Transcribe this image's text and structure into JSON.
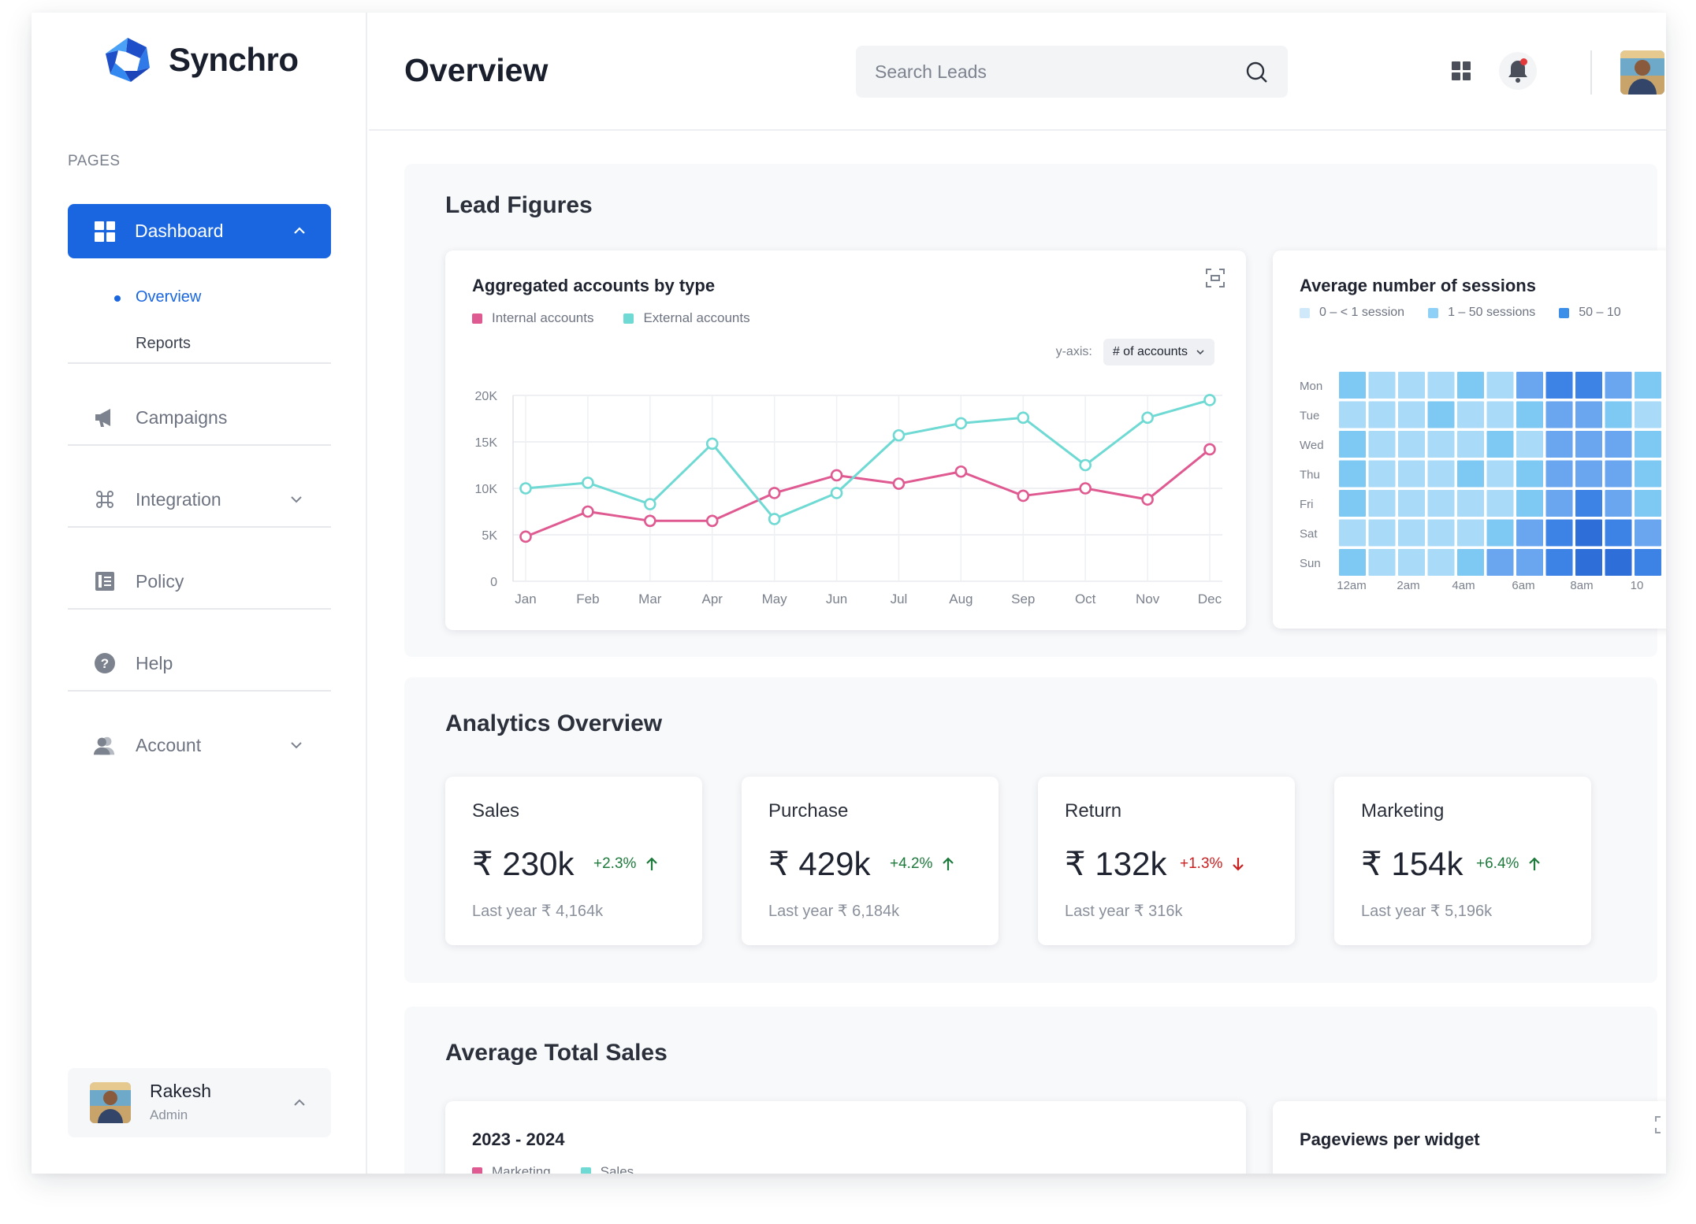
{
  "app": {
    "name": "Synchro"
  },
  "sidebar": {
    "section_label": "PAGES",
    "dashboard": {
      "label": "Dashboard",
      "icon": "dashboard-icon"
    },
    "subitems": [
      {
        "label": "Overview",
        "active": true
      },
      {
        "label": "Reports",
        "active": false
      }
    ],
    "items": [
      {
        "label": "Campaigns",
        "icon": "megaphone-icon"
      },
      {
        "label": "Integration",
        "icon": "command-icon",
        "has_chevron": true
      },
      {
        "label": "Policy",
        "icon": "document-icon"
      },
      {
        "label": "Help",
        "icon": "help-icon"
      },
      {
        "label": "Account",
        "icon": "users-icon",
        "has_chevron": true
      }
    ],
    "user": {
      "name": "Rakesh",
      "role": "Admin"
    }
  },
  "header": {
    "title": "Overview",
    "search_placeholder": "Search Leads"
  },
  "lead_figures": {
    "title": "Lead Figures",
    "accounts_card": {
      "title": "Aggregated accounts by type",
      "legend": [
        {
          "name": "Internal accounts",
          "color": "#e05a92"
        },
        {
          "name": "External accounts",
          "color": "#6fd9d3"
        }
      ],
      "yaxis_label": "y-axis:",
      "yaxis_select": "# of accounts"
    },
    "sessions_card": {
      "title": "Average number of sessions",
      "legend": [
        {
          "name": "0 – < 1 session",
          "color": "#cfe9fb"
        },
        {
          "name": "1 – 50 sessions",
          "color": "#8fd0f6"
        },
        {
          "name": "50 – 10",
          "color": "#3b8fe8"
        }
      ]
    }
  },
  "analytics": {
    "title": "Analytics Overview",
    "kpis": [
      {
        "label": "Sales",
        "value": "₹ 230k",
        "delta": "+2.3%",
        "direction": "up",
        "prev": "Last year ₹ 4,164k"
      },
      {
        "label": "Purchase",
        "value": "₹ 429k",
        "delta": "+4.2%",
        "direction": "up",
        "prev": "Last year ₹ 6,184k"
      },
      {
        "label": "Return",
        "value": "₹ 132k",
        "delta": "+1.3%",
        "direction": "down",
        "prev": "Last year ₹ 316k"
      },
      {
        "label": "Marketing",
        "value": "₹ 154k",
        "delta": "+6.4%",
        "direction": "up",
        "prev": "Last year ₹ 5,196k"
      }
    ]
  },
  "avg_sales": {
    "title": "Average Total Sales",
    "sales_card": {
      "title": "2023 - 2024",
      "legend": [
        {
          "name": "Marketing",
          "color": "#e05a92"
        },
        {
          "name": "Sales",
          "color": "#6fd9d3"
        }
      ]
    },
    "pageviews_card": {
      "title": "Pageviews per widget"
    }
  },
  "chart_data": [
    {
      "type": "line",
      "title": "Aggregated accounts by type",
      "categories": [
        "Jan",
        "Feb",
        "Mar",
        "Apr",
        "May",
        "Jun",
        "Jul",
        "Aug",
        "Sep",
        "Oct",
        "Nov",
        "Dec"
      ],
      "y_ticks": [
        "0",
        "5K",
        "10K",
        "15K",
        "20K"
      ],
      "ylim": [
        0,
        20000
      ],
      "grid": true,
      "legend_position": "top-left",
      "series": [
        {
          "name": "Internal accounts",
          "color": "#e05a92",
          "values": [
            4800,
            7500,
            6500,
            6500,
            9500,
            11400,
            10500,
            11800,
            9200,
            10000,
            8800,
            14200
          ]
        },
        {
          "name": "External accounts",
          "color": "#6fd9d3",
          "values": [
            10000,
            10600,
            8300,
            14800,
            6700,
            9500,
            15700,
            17000,
            17600,
            12500,
            17600,
            19500
          ]
        }
      ]
    },
    {
      "type": "heatmap",
      "title": "Average number of sessions",
      "rows": [
        "Mon",
        "Tue",
        "Wed",
        "Thu",
        "Fri",
        "Sat",
        "Sun"
      ],
      "x_ticks": [
        "12am",
        "2am",
        "4am",
        "6am",
        "8am",
        "10"
      ],
      "levels": [
        "#cfe9fb",
        "#a9dbf8",
        "#7ec8f4",
        "#6aa6f0",
        "#3d83e6",
        "#2e6ed8"
      ],
      "values": [
        [
          2,
          1,
          1,
          1,
          2,
          1,
          3,
          4,
          4,
          3,
          2
        ],
        [
          1,
          1,
          1,
          2,
          1,
          1,
          2,
          3,
          3,
          2,
          1
        ],
        [
          2,
          1,
          1,
          1,
          1,
          2,
          1,
          3,
          3,
          3,
          2
        ],
        [
          2,
          1,
          1,
          1,
          2,
          1,
          2,
          3,
          3,
          3,
          2
        ],
        [
          2,
          1,
          1,
          1,
          1,
          1,
          2,
          3,
          4,
          3,
          2
        ],
        [
          1,
          1,
          1,
          1,
          1,
          2,
          3,
          4,
          5,
          4,
          3
        ],
        [
          2,
          1,
          1,
          1,
          2,
          3,
          3,
          4,
          5,
          5,
          4
        ]
      ]
    }
  ]
}
